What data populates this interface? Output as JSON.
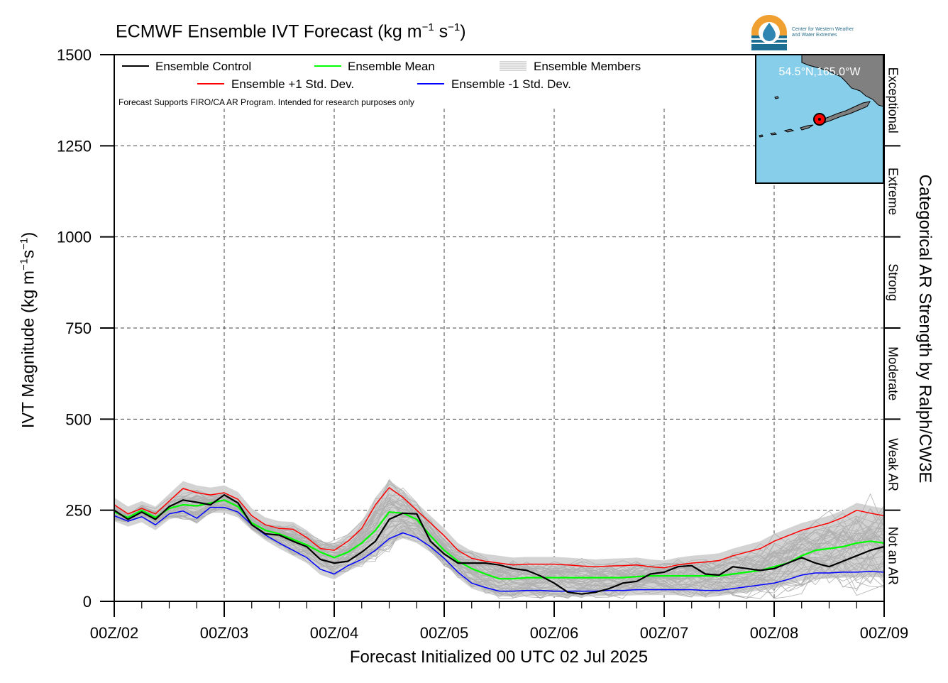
{
  "title": {
    "main": "ECMWF Ensemble IVT Forecast (kg m",
    "sup1": "−1",
    "mid": " s",
    "sup2": "−1",
    "end": ")"
  },
  "xlabel": "Forecast Initialized 00 UTC 02 Jul 2025",
  "ylabel": {
    "main": "IVT Magnitude (kg m",
    "sup1": "−1",
    "mid": "s",
    "sup2": "−1",
    "end": ")"
  },
  "right_label": "Categorical AR Strength by Ralph/CW3E",
  "logo": {
    "icon": "water-drop-icon",
    "line1": "Center for Western Weather",
    "line2": "and Water Extremes"
  },
  "notice": "Forecast Supports FIRO/CA AR Program. Intended for research purposes only",
  "inset": {
    "label": "54.5°N,165.0°W",
    "ocean_color": "#87ceeb",
    "land_color": "#808080",
    "marker_color": "#ff0000"
  },
  "categories": [
    "Exceptional",
    "Extreme",
    "Strong",
    "Moderate",
    "Weak AR",
    "Not an AR"
  ],
  "colors": {
    "control": "#000000",
    "mean": "#00ff00",
    "plus": "#ff0000",
    "minus": "#0000ff",
    "members": "#b0b0b0",
    "spread": "#d3d3d3"
  },
  "chart_data": {
    "type": "line",
    "x": [
      0,
      3,
      6,
      9,
      12,
      15,
      18,
      21,
      24,
      27,
      30,
      33,
      36,
      39,
      42,
      45,
      48,
      51,
      54,
      57,
      60,
      63,
      66,
      69,
      72,
      75,
      78,
      81,
      84,
      87,
      90,
      93,
      96,
      99,
      102,
      105,
      108,
      111,
      114,
      117,
      120,
      123,
      126,
      129,
      132,
      135,
      138,
      141,
      144,
      147,
      150,
      153,
      156,
      159,
      162,
      165,
      168
    ],
    "xticks": [
      0,
      24,
      48,
      72,
      96,
      120,
      144,
      168
    ],
    "xticklabels": [
      "00Z/02",
      "00Z/03",
      "00Z/04",
      "00Z/05",
      "00Z/06",
      "00Z/07",
      "00Z/08",
      "00Z/09"
    ],
    "yticks": [
      0,
      250,
      500,
      750,
      1000,
      1250,
      1500
    ],
    "ylim": [
      0,
      1500
    ],
    "xlim": [
      0,
      168
    ],
    "series": [
      {
        "name": "Ensemble Control",
        "values": [
          250,
          225,
          245,
          225,
          260,
          278,
          272,
          265,
          292,
          270,
          210,
          185,
          182,
          165,
          150,
          115,
          105,
          110,
          135,
          165,
          225,
          242,
          240,
          165,
          130,
          105,
          105,
          105,
          100,
          90,
          85,
          70,
          50,
          25,
          20,
          25,
          35,
          50,
          55,
          75,
          80,
          95,
          98,
          75,
          72,
          95,
          90,
          85,
          90,
          105,
          120,
          105,
          95,
          110,
          125,
          140,
          150
        ]
      },
      {
        "name": "Ensemble Mean",
        "values": [
          245,
          230,
          250,
          230,
          255,
          265,
          262,
          270,
          278,
          260,
          215,
          195,
          185,
          170,
          155,
          135,
          120,
          135,
          160,
          195,
          245,
          242,
          225,
          180,
          140,
          110,
          90,
          75,
          62,
          62,
          65,
          65,
          65,
          65,
          65,
          65,
          65,
          65,
          68,
          70,
          70,
          70,
          70,
          70,
          70,
          75,
          80,
          85,
          95,
          105,
          125,
          140,
          145,
          150,
          160,
          165,
          160
        ]
      },
      {
        "name": "Ensemble +1 Std. Dev.",
        "values": [
          265,
          240,
          255,
          240,
          275,
          310,
          298,
          292,
          298,
          280,
          235,
          210,
          200,
          198,
          175,
          145,
          140,
          165,
          200,
          265,
          312,
          285,
          250,
          215,
          180,
          140,
          118,
          110,
          105,
          100,
          102,
          102,
          102,
          100,
          97,
          95,
          97,
          98,
          100,
          95,
          92,
          100,
          105,
          108,
          112,
          125,
          135,
          145,
          165,
          180,
          195,
          205,
          215,
          230,
          250,
          242,
          235
        ]
      },
      {
        "name": "Ensemble -1 Std. Dev.",
        "values": [
          235,
          220,
          232,
          210,
          240,
          248,
          228,
          258,
          258,
          245,
          210,
          182,
          160,
          140,
          120,
          88,
          75,
          98,
          115,
          140,
          172,
          188,
          175,
          150,
          118,
          80,
          50,
          38,
          28,
          28,
          30,
          30,
          28,
          28,
          28,
          28,
          30,
          30,
          32,
          32,
          32,
          32,
          32,
          30,
          30,
          35,
          40,
          45,
          50,
          60,
          72,
          78,
          78,
          80,
          80,
          82,
          80
        ]
      }
    ]
  }
}
